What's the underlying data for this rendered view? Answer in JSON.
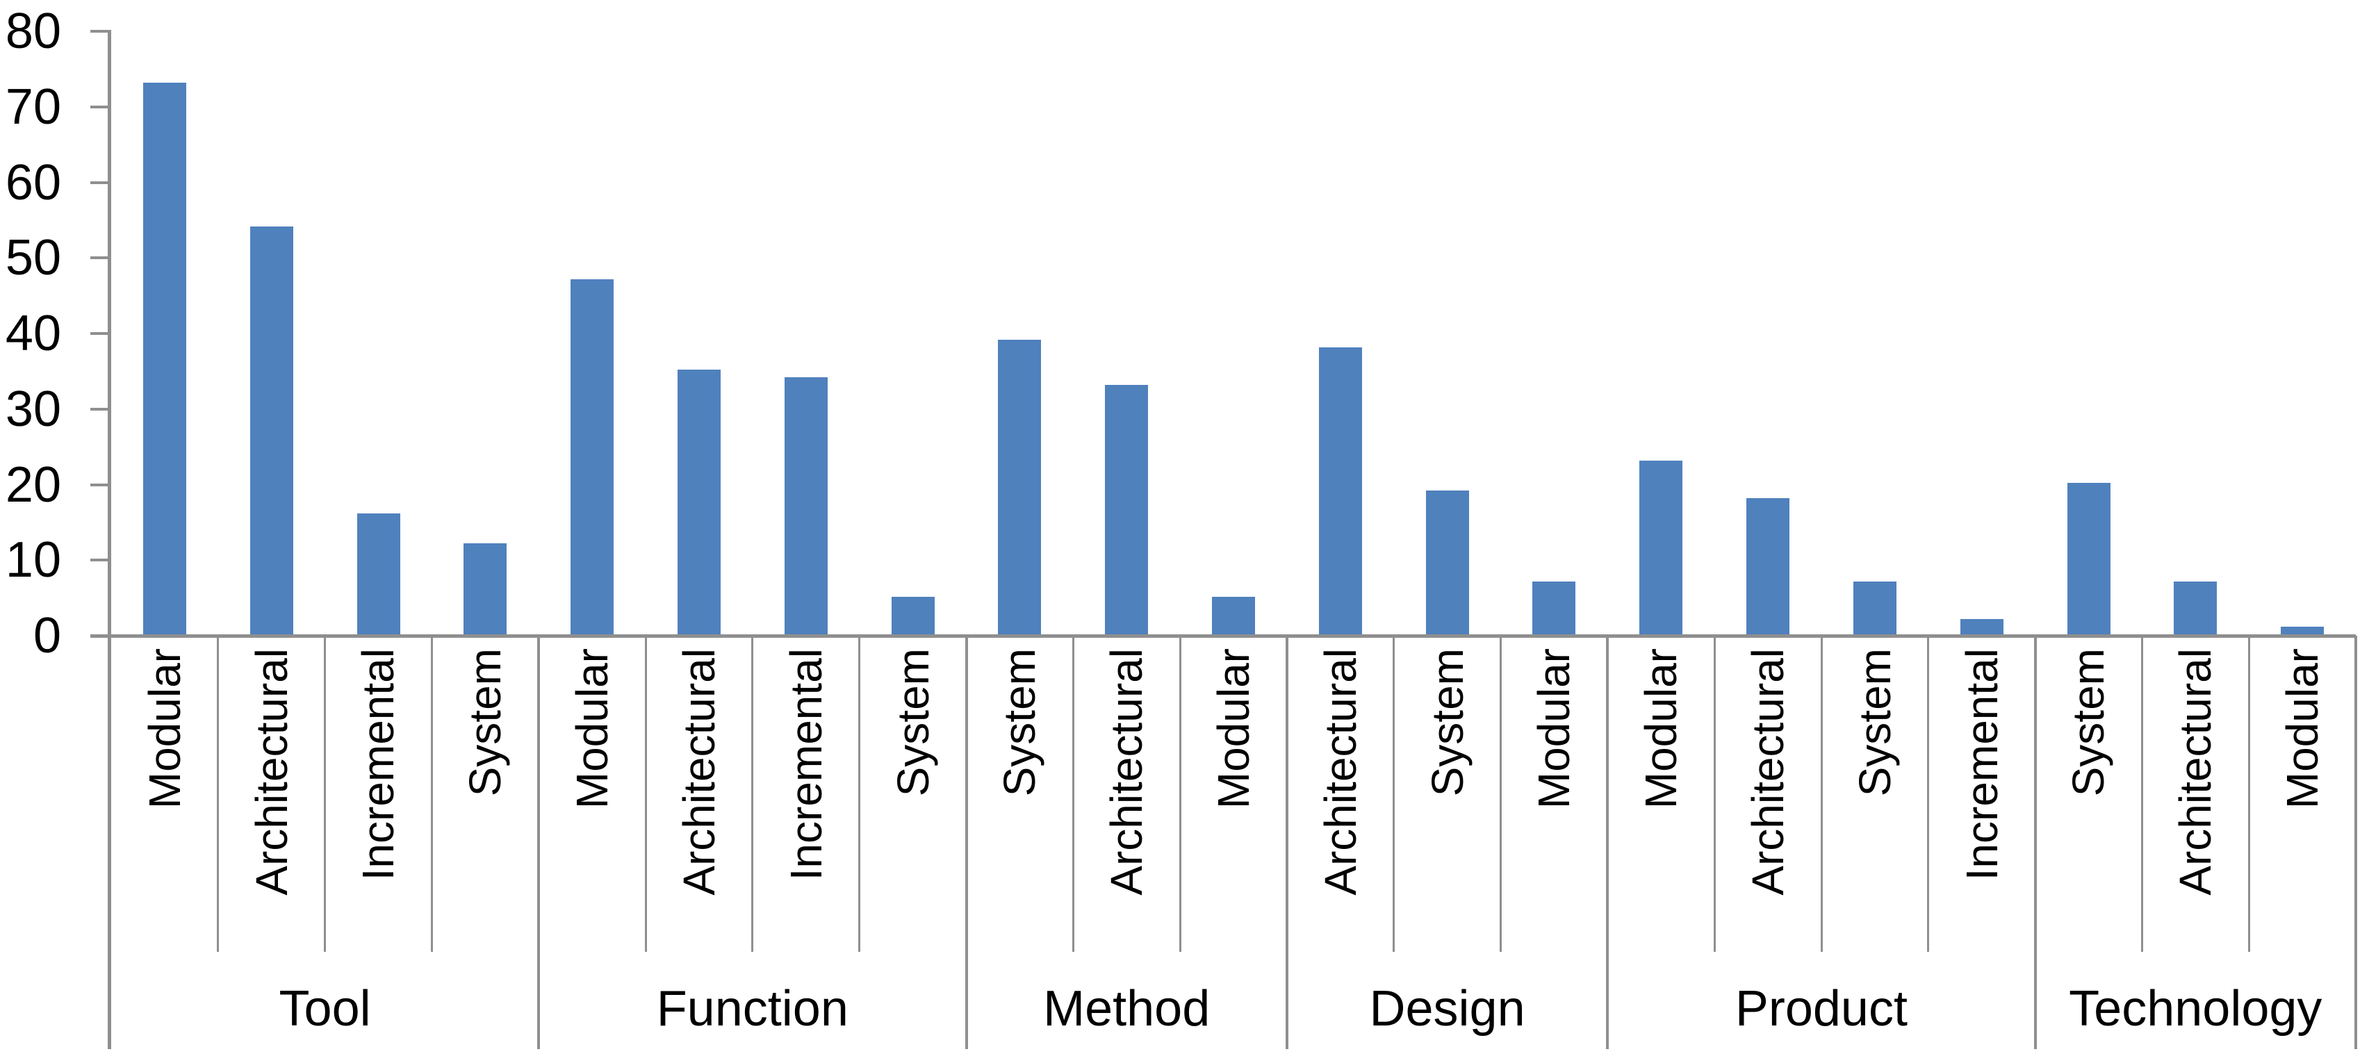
{
  "chart_data": {
    "type": "bar",
    "ylim": [
      0,
      80
    ],
    "y_ticks": [
      0,
      10,
      20,
      30,
      40,
      50,
      60,
      70,
      80
    ],
    "grid": false,
    "legend": false,
    "colors": {
      "bar": "#4f81bd",
      "axis_line": "#8f8f8f",
      "text": "#000000",
      "background": "#ffffff"
    },
    "groups": [
      {
        "label": "Tool",
        "categories": [
          "Modular",
          "Architectural",
          "Incremental",
          "System"
        ],
        "values": [
          73,
          54,
          16,
          12
        ]
      },
      {
        "label": "Function",
        "categories": [
          "Modular",
          "Architectural",
          "Incremental",
          "System"
        ],
        "values": [
          47,
          35,
          34,
          5
        ]
      },
      {
        "label": "Method",
        "categories": [
          "System",
          "Architectural",
          "Modular"
        ],
        "values": [
          39,
          33,
          5
        ]
      },
      {
        "label": "Design",
        "categories": [
          "Architectural",
          "System",
          "Modular"
        ],
        "values": [
          38,
          19,
          7
        ]
      },
      {
        "label": "Product",
        "categories": [
          "Modular",
          "Architectural",
          "System",
          "Incremental"
        ],
        "values": [
          23,
          18,
          7,
          2
        ]
      },
      {
        "label": "Technology",
        "categories": [
          "System",
          "Architectural",
          "Modular"
        ],
        "values": [
          20,
          7,
          1
        ]
      }
    ]
  }
}
